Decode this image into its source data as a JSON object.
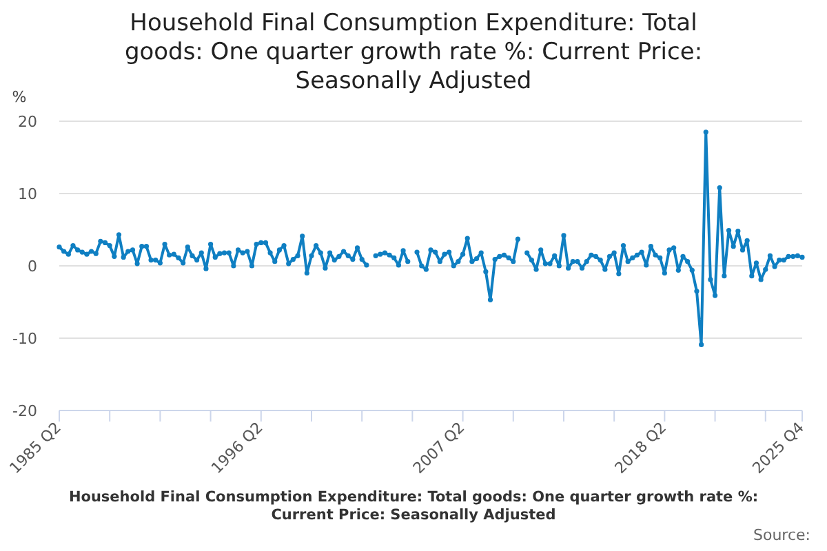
{
  "chart_data": {
    "type": "line",
    "title": "Household Final Consumption Expenditure: Total goods: One quarter growth rate %: Current Price: Seasonally Adjusted",
    "ylabel": "%",
    "categories": [
      "1985 Q2",
      null,
      null,
      null,
      null,
      null,
      null,
      null,
      null,
      null,
      null,
      null,
      null,
      null,
      null,
      null,
      null,
      null,
      null,
      null,
      null,
      null,
      null,
      null,
      null,
      null,
      null,
      null,
      null,
      null,
      null,
      null,
      null,
      null,
      null,
      null,
      null,
      null,
      null,
      null,
      null,
      null,
      null,
      null,
      "1996 Q2",
      null,
      null,
      null,
      null,
      null,
      null,
      null,
      null,
      null,
      null,
      null,
      null,
      null,
      null,
      null,
      null,
      null,
      null,
      null,
      null,
      null,
      null,
      null,
      null,
      null,
      null,
      null,
      null,
      null,
      null,
      null,
      null,
      null,
      null,
      null,
      null,
      null,
      null,
      null,
      null,
      null,
      null,
      null,
      "2007 Q2",
      null,
      null,
      null,
      null,
      null,
      null,
      null,
      null,
      null,
      null,
      null,
      null,
      null,
      null,
      null,
      null,
      null,
      null,
      null,
      null,
      null,
      null,
      null,
      null,
      null,
      null,
      null,
      null,
      null,
      null,
      null,
      null,
      null,
      null,
      null,
      null,
      null,
      null,
      null,
      null,
      null,
      null,
      null,
      "2018 Q2",
      null,
      null,
      null,
      null,
      null,
      null,
      null,
      null,
      null,
      null,
      null,
      null,
      null,
      null,
      null,
      null,
      null,
      null,
      null,
      null,
      null,
      null,
      null,
      null,
      null,
      null,
      null,
      null,
      null,
      "2025 Q4"
    ],
    "series": [
      {
        "name": "Household Final Consumption Expenditure: Total goods: One quarter growth rate %: Current Price: Seasonally Adjusted",
        "color": "#0f7fc2",
        "values": [
          2.6,
          2.0,
          1.6,
          2.8,
          2.2,
          1.9,
          1.6,
          2.0,
          1.7,
          3.4,
          3.2,
          2.8,
          1.3,
          4.3,
          1.2,
          2.0,
          2.2,
          0.3,
          2.7,
          2.7,
          0.8,
          0.8,
          0.4,
          3.0,
          1.5,
          1.6,
          1.1,
          0.4,
          2.6,
          1.4,
          0.8,
          1.8,
          -0.4,
          3.0,
          1.2,
          1.7,
          1.8,
          1.8,
          0,
          2.2,
          1.8,
          2.0,
          0,
          3.0,
          3.2,
          3.2,
          1.8,
          0.6,
          2.2,
          2.8,
          0.3,
          0.9,
          1.4,
          4.1,
          -1.0,
          1.4,
          2.8,
          1.8,
          -0.3,
          1.8,
          0.8,
          1.3,
          2.0,
          1.4,
          0.9,
          2.5,
          0.9,
          0.1,
          null,
          1.4,
          1.6,
          1.8,
          1.5,
          1.1,
          0.1,
          2.1,
          0.6,
          null,
          1.9,
          0,
          -0.5,
          2.2,
          1.9,
          0.6,
          1.6,
          1.9,
          0,
          0.6,
          1.6,
          3.8,
          0.6,
          1.0,
          1.8,
          -0.8,
          -4.7,
          0.9,
          1.3,
          1.5,
          1.1,
          0.6,
          3.7,
          null,
          1.8,
          0.8,
          -0.5,
          2.2,
          0.3,
          0.3,
          1.4,
          0,
          4.2,
          -0.3,
          0.6,
          0.6,
          -0.3,
          0.6,
          1.5,
          1.3,
          0.8,
          -0.5,
          1.3,
          1.8,
          -1.1,
          2.8,
          0.6,
          1.1,
          1.5,
          1.9,
          0.1,
          2.7,
          1.5,
          1.1,
          -1.0,
          2.2,
          2.5,
          -0.6,
          1.3,
          0.6,
          -0.6,
          -3.5,
          -10.9,
          18.5,
          -1.9,
          -4.1,
          10.8,
          -1.4,
          4.9,
          2.7,
          4.8,
          2.2,
          3.5,
          -1.4,
          0.4,
          -1.9,
          -0.5,
          1.4,
          -0.1,
          0.8,
          0.8,
          1.3,
          1.3,
          1.4,
          1.2
        ]
      }
    ],
    "ylim": [
      -20,
      20
    ],
    "yticks": [
      -20,
      -10,
      0,
      10,
      20
    ],
    "grid": "y",
    "marker": "circle",
    "line_style": "solid",
    "legend": "bottom",
    "annotations": [
      "Source:"
    ]
  }
}
